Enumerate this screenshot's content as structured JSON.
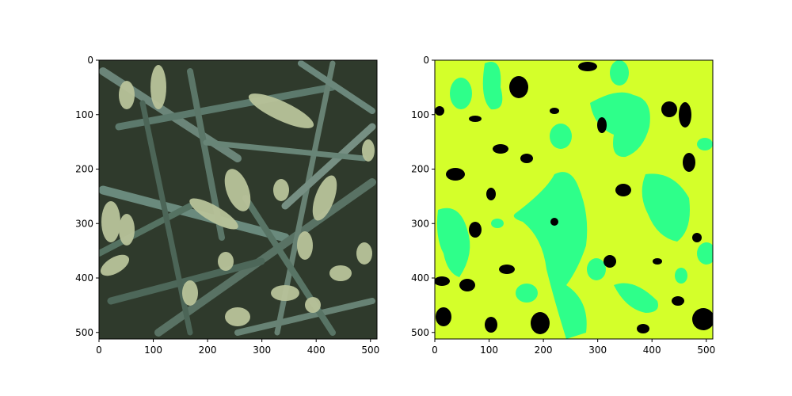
{
  "figure": {
    "panels": [
      {
        "name": "photo-panel",
        "content": "wheat-field-photo",
        "x_ticks": [
          "0",
          "100",
          "200",
          "300",
          "400",
          "500"
        ],
        "y_ticks": [
          "0",
          "100",
          "200",
          "300",
          "400",
          "500"
        ]
      },
      {
        "name": "segmentation-panel",
        "content": "segmentation-mask",
        "x_ticks": [
          "0",
          "100",
          "200",
          "300",
          "400",
          "500"
        ],
        "y_ticks": [
          "0",
          "100",
          "200",
          "300",
          "400",
          "500"
        ],
        "legend_colors": {
          "background": "#000000",
          "leaf": "#d4ff2a",
          "wheat_head": "#2eff8a"
        }
      }
    ],
    "image_extent": [
      0,
      512
    ]
  }
}
